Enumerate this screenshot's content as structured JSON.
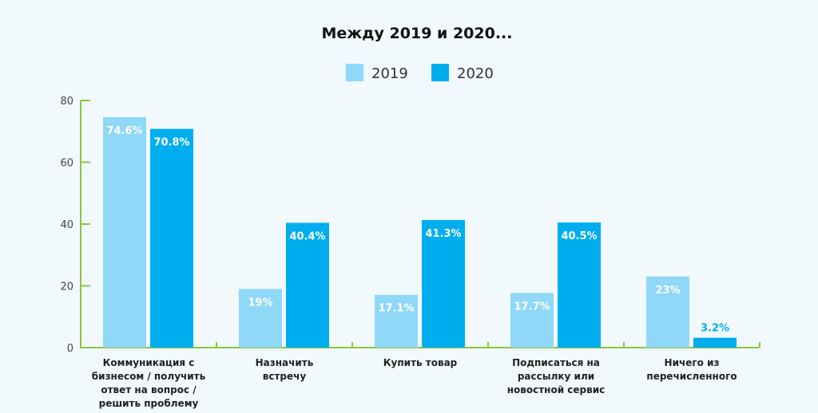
{
  "chart_data": {
    "type": "bar",
    "title": "Между 2019 и 2020...",
    "categories": [
      [
        "Коммуникация с",
        "бизнесом / получить",
        "ответ на вопрос /",
        "решить проблему"
      ],
      [
        "Назначить",
        "встречу"
      ],
      [
        "Купить товар"
      ],
      [
        "Подписаться на",
        "рассылку или",
        "новостной сервис"
      ],
      [
        "Ничего из",
        "перечисленного"
      ]
    ],
    "series": [
      {
        "name": "2019",
        "color": "#8fd8f7",
        "values": [
          74.6,
          19,
          17.1,
          17.7,
          23
        ],
        "labels": [
          "74.6%",
          "19%",
          "17.1%",
          "17.7%",
          "23%"
        ]
      },
      {
        "name": "2020",
        "color": "#00aeef",
        "values": [
          70.8,
          40.4,
          41.3,
          40.5,
          3.2
        ],
        "labels": [
          "70.8%",
          "40.4%",
          "41.3%",
          "40.5%",
          "3.2%"
        ]
      }
    ],
    "ylim": [
      0,
      80
    ],
    "yticks": [
      0,
      20,
      40,
      60,
      80
    ],
    "axis_color": "#8dc63f",
    "legend_position": "top-center",
    "grid": false
  }
}
